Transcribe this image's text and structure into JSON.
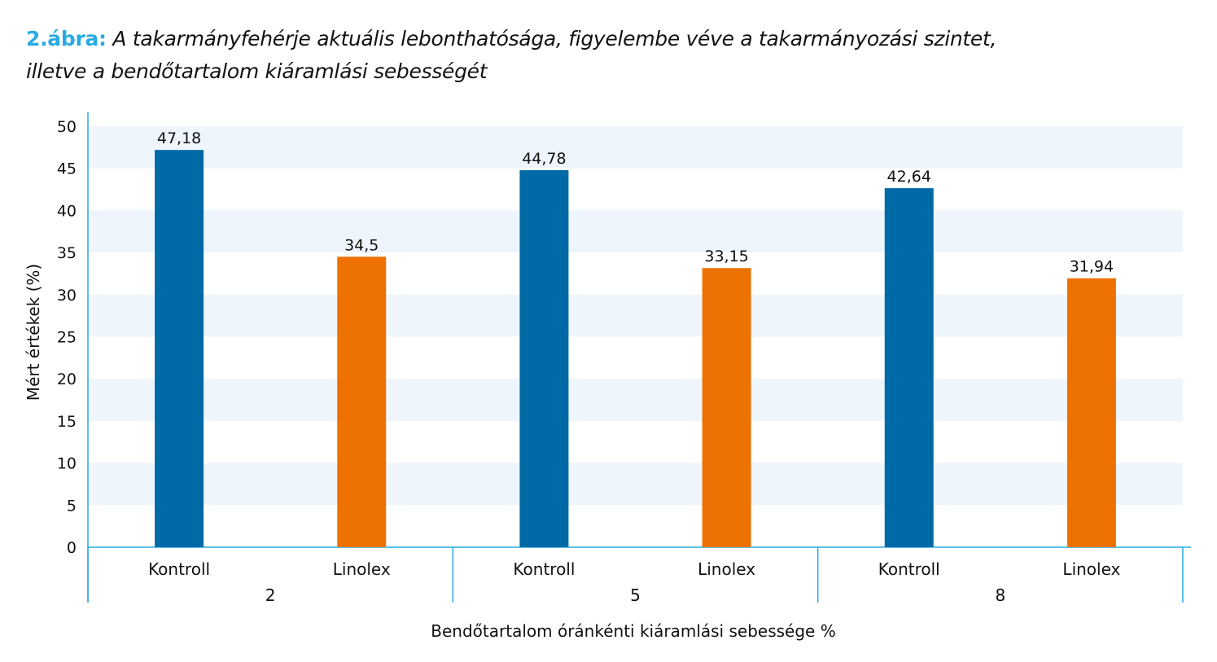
{
  "title": {
    "label": "2.ábra:",
    "line1": "A takarmányfehérje aktuális lebonthatósága, figyelembe véve a takarmányozási szintet,",
    "line2": "illetve a bendőtartalom kiáramlási sebességét"
  },
  "chart_data": {
    "type": "bar",
    "groups": [
      {
        "label": "2",
        "categories": [
          "Kontroll",
          "Linolex"
        ],
        "values": [
          47.18,
          34.5
        ],
        "value_labels": [
          "47,18",
          "34,5"
        ]
      },
      {
        "label": "5",
        "categories": [
          "Kontroll",
          "Linolex"
        ],
        "values": [
          44.78,
          33.15
        ],
        "value_labels": [
          "44,78",
          "33,15"
        ]
      },
      {
        "label": "8",
        "categories": [
          "Kontroll",
          "Linolex"
        ],
        "values": [
          42.64,
          31.94
        ],
        "value_labels": [
          "42,64",
          "31,94"
        ]
      }
    ],
    "xlabel": "Bendőtartalom óránkénti kiáramlási sebessége %",
    "ylabel": "Mért értékek (%)",
    "ylim": [
      0,
      50
    ],
    "yticks": [
      0,
      5,
      10,
      15,
      20,
      25,
      30,
      35,
      40,
      45,
      50
    ],
    "grid": "alternating horizontal bands",
    "colors": {
      "Kontroll": "#006aa6",
      "Linolex": "#ee7203",
      "band": "#eef5fc",
      "axis": "#29abe2",
      "title_label": "#29abe2"
    }
  }
}
